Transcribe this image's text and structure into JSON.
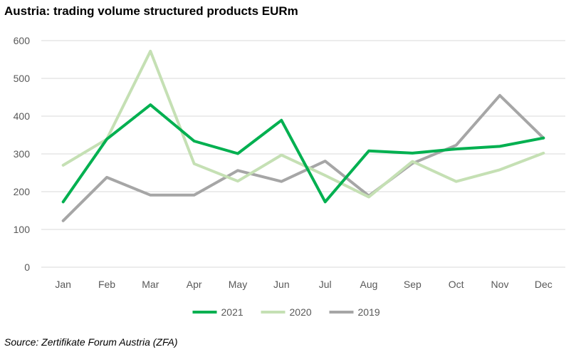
{
  "title": "Austria: trading volume structured products EURm",
  "source": "Source: Zertifikate Forum Austria (ZFA)",
  "colors": {
    "2021": "#00b050",
    "2020": "#c5e0b4",
    "2019": "#a6a6a6",
    "grid": "#d9d9d9",
    "axis_text": "#595959"
  },
  "chart_data": {
    "type": "line",
    "title": "Austria: trading volume structured products EURm",
    "xlabel": "",
    "ylabel": "",
    "ylim": [
      0,
      600
    ],
    "yticks": [
      0,
      100,
      200,
      300,
      400,
      500,
      600
    ],
    "grid": true,
    "legend_position": "bottom",
    "categories": [
      "Jan",
      "Feb",
      "Mar",
      "Apr",
      "May",
      "Jun",
      "Jul",
      "Aug",
      "Sep",
      "Oct",
      "Nov",
      "Dec"
    ],
    "series": [
      {
        "name": "2021",
        "color": "#00b050",
        "values": [
          173,
          339,
          430,
          334,
          301,
          389,
          173,
          308,
          302,
          313,
          320,
          342
        ]
      },
      {
        "name": "2020",
        "color": "#c5e0b4",
        "values": [
          270,
          339,
          572,
          274,
          228,
          297,
          243,
          186,
          280,
          227,
          258,
          302
        ]
      },
      {
        "name": "2019",
        "color": "#a6a6a6",
        "values": [
          123,
          238,
          191,
          191,
          256,
          227,
          281,
          189,
          275,
          323,
          455,
          342
        ]
      }
    ]
  }
}
